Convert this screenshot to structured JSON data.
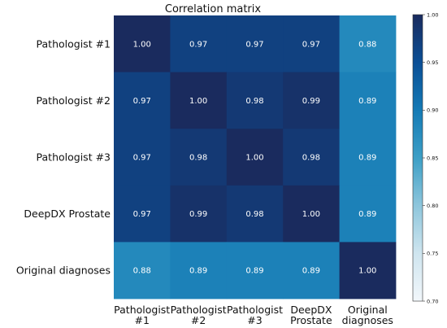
{
  "chart_data": {
    "type": "heatmap",
    "title": "Correlation matrix",
    "rows": [
      "Pathologist #1",
      "Pathologist #2",
      "Pathologist #3",
      "DeepDX Prostate",
      "Original diagnoses"
    ],
    "columns": [
      [
        "Pathologist",
        "#1"
      ],
      [
        "Pathologist",
        "#2"
      ],
      [
        "Pathologist",
        "#3"
      ],
      [
        "DeepDX",
        "Prostate"
      ],
      [
        "Original",
        "diagnoses"
      ]
    ],
    "values": [
      [
        1.0,
        0.97,
        0.97,
        0.97,
        0.88
      ],
      [
        0.97,
        1.0,
        0.98,
        0.99,
        0.89
      ],
      [
        0.97,
        0.98,
        1.0,
        0.98,
        0.89
      ],
      [
        0.97,
        0.99,
        0.98,
        1.0,
        0.89
      ],
      [
        0.88,
        0.89,
        0.89,
        0.89,
        1.0
      ]
    ],
    "value_labels": [
      [
        "1.00",
        "0.97",
        "0.97",
        "0.97",
        "0.88"
      ],
      [
        "0.97",
        "1.00",
        "0.98",
        "0.99",
        "0.89"
      ],
      [
        "0.97",
        "0.98",
        "1.00",
        "0.98",
        "0.89"
      ],
      [
        "0.97",
        "0.99",
        "0.98",
        "1.00",
        "0.89"
      ],
      [
        "0.88",
        "0.89",
        "0.89",
        "0.89",
        "1.00"
      ]
    ],
    "colorbar": {
      "range": [
        0.7,
        1.0
      ],
      "ticks": [
        "1.00",
        "0.95",
        "0.90",
        "0.85",
        "0.80",
        "0.75",
        "0.70"
      ],
      "colors": [
        "#f2f7fb",
        "#cfe5ef",
        "#8ec6dc",
        "#3d9fc6",
        "#147ab5",
        "#0b4f96",
        "#1a2b5e"
      ]
    }
  }
}
